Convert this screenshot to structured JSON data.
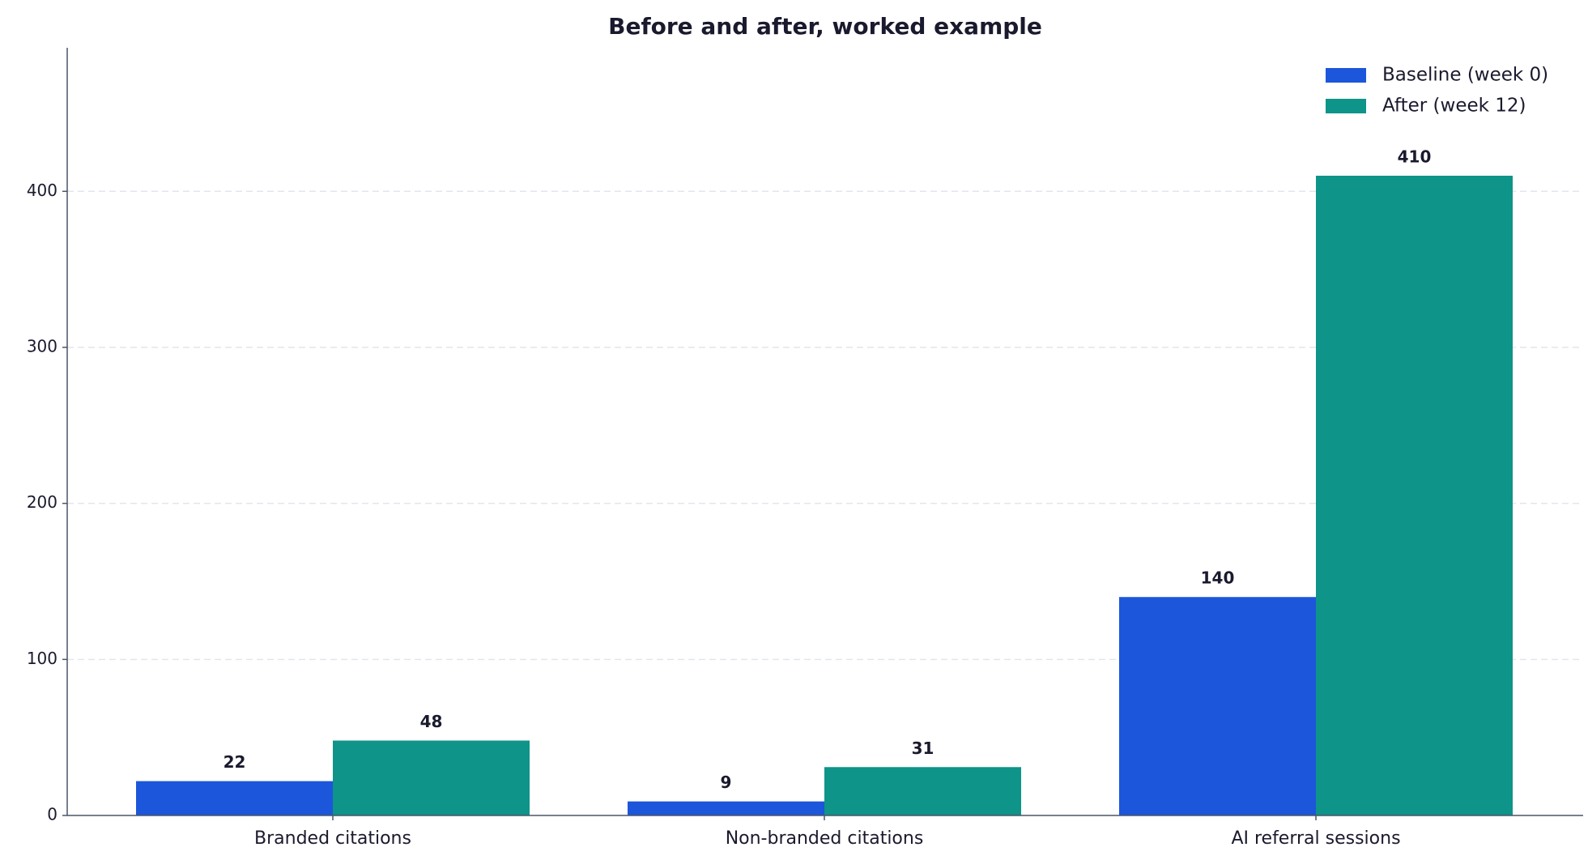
{
  "chart_data": {
    "type": "bar",
    "title": "Before and after, worked example",
    "categories": [
      "Branded citations",
      "Non-branded citations",
      "AI referral sessions"
    ],
    "series": [
      {
        "name": "Baseline (week 0)",
        "color": "#1c56db",
        "values": [
          22,
          9,
          140
        ]
      },
      {
        "name": "After (week 12)",
        "color": "#0e9488",
        "values": [
          48,
          31,
          410
        ]
      }
    ],
    "ylim": [
      0,
      492
    ],
    "yticks": [
      0,
      100,
      200,
      300,
      400
    ],
    "grid": true,
    "legend": "upper right"
  }
}
